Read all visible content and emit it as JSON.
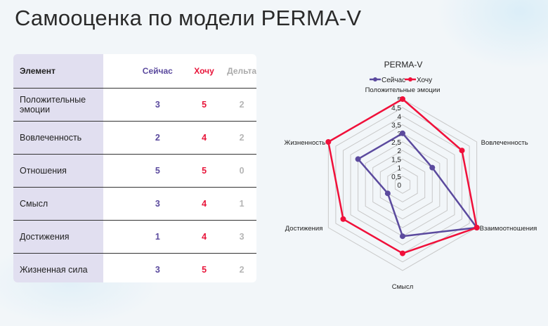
{
  "page": {
    "title": "Самооценка по модели PERMA-V"
  },
  "table": {
    "headers": {
      "element": "Элемент",
      "now": "Сейчас",
      "want": "Хочу",
      "delta": "Дельта"
    },
    "rows": [
      {
        "element": "Положительные эмоции",
        "now": "3",
        "want": "5",
        "delta": "2"
      },
      {
        "element": "Вовлеченность",
        "now": "2",
        "want": "4",
        "delta": "2"
      },
      {
        "element": "Отношения",
        "now": "5",
        "want": "5",
        "delta": "0"
      },
      {
        "element": "Смысл",
        "now": "3",
        "want": "4",
        "delta": "1"
      },
      {
        "element": "Достижения",
        "now": "1",
        "want": "4",
        "delta": "3"
      },
      {
        "element": "Жизненная сила",
        "now": "3",
        "want": "5",
        "delta": "2"
      }
    ]
  },
  "colors": {
    "now": "#5b4a9e",
    "want": "#f0103a",
    "delta": "#b5b5b5",
    "grid": "#c8c8c8",
    "first_col_bg": "#e1dff0"
  },
  "chart_data": {
    "type": "radar",
    "title": "PERMA-V",
    "categories": [
      "Положительные эмоции",
      "Вовлеченность",
      "Взаимоотношения",
      "Смысл",
      "Достижения",
      "Жизненность"
    ],
    "series": [
      {
        "name": "Сейчас",
        "values": [
          3,
          2,
          5,
          3,
          1,
          3
        ],
        "color": "#5b4a9e"
      },
      {
        "name": "Хочу",
        "values": [
          5,
          4,
          5,
          4,
          4,
          5
        ],
        "color": "#f0103a"
      }
    ],
    "ticks": [
      "0",
      "0,5",
      "1",
      "1,5",
      "2",
      "2,5",
      "3",
      "3,5",
      "4",
      "4,5",
      "5"
    ],
    "rmax": 5,
    "legend_position": "top"
  }
}
